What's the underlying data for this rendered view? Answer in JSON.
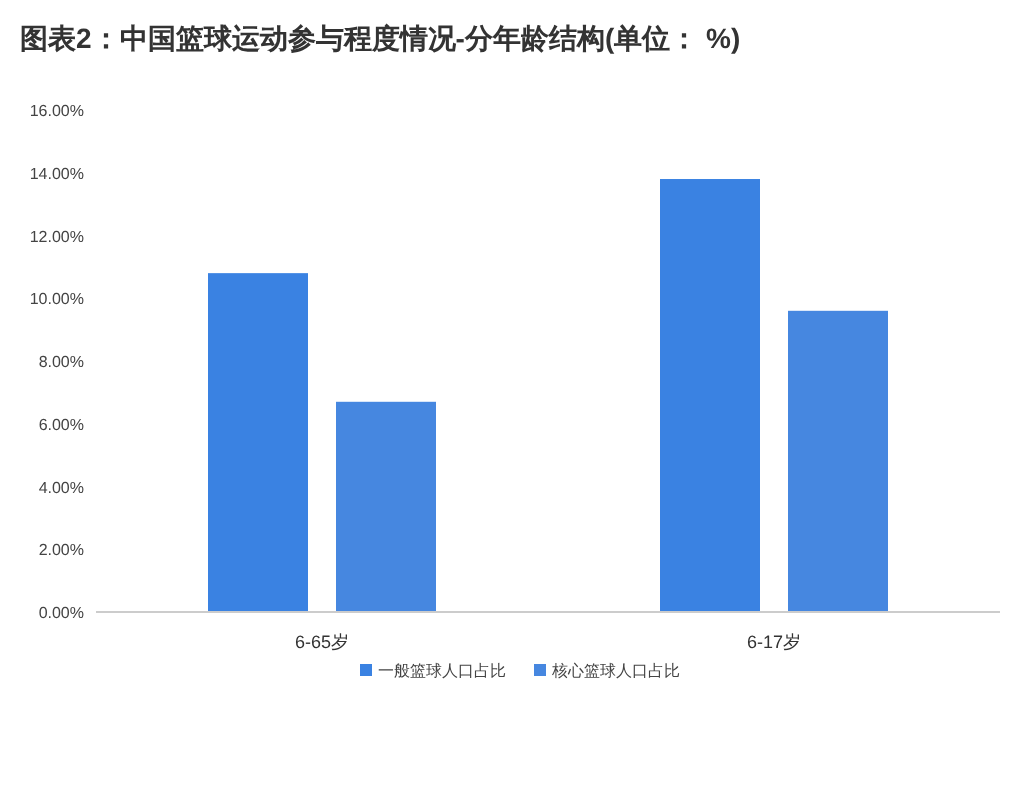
{
  "chart_data": {
    "type": "bar",
    "title": "图表2：中国篮球运动参与程度情况-分年龄结构(单位：  %)",
    "categories": [
      "6-65岁",
      "6-17岁"
    ],
    "series": [
      {
        "name": "一般篮球人口占比",
        "color": "#3a82e2",
        "values": [
          10.8,
          13.8
        ]
      },
      {
        "name": "核心篮球人口占比",
        "color": "#4687e0",
        "values": [
          6.7,
          9.6
        ]
      }
    ],
    "ylim": [
      0,
      16
    ],
    "yticks": [
      {
        "value": 0,
        "label": "0.00%"
      },
      {
        "value": 2,
        "label": "2.00%"
      },
      {
        "value": 4,
        "label": "4.00%"
      },
      {
        "value": 6,
        "label": "6.00%"
      },
      {
        "value": 8,
        "label": "8.00%"
      },
      {
        "value": 10,
        "label": "10.00%"
      },
      {
        "value": 12,
        "label": "12.00%"
      },
      {
        "value": 14,
        "label": "14.00%"
      },
      {
        "value": 16,
        "label": "16.00%"
      }
    ],
    "grid": false,
    "legend": "bottom"
  }
}
